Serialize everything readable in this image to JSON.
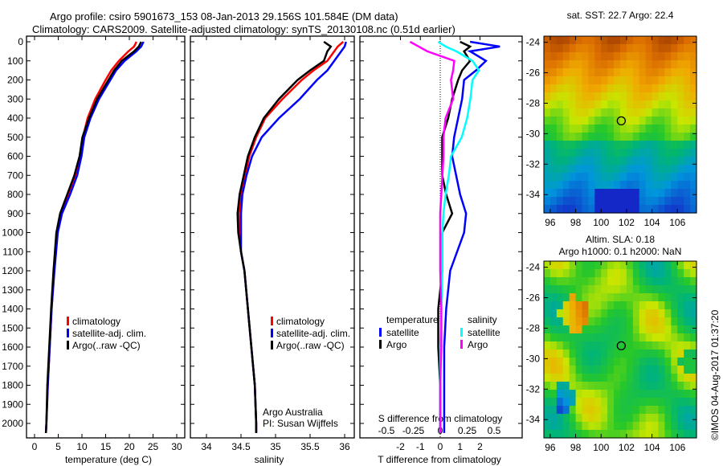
{
  "title_line1": "Argo profile: csiro 5901673_153 08-Jan-2013 29.156S 101.584E (DM data)",
  "title_line2": "Climatology: CARS2009. Satellite-adjusted climatology: synTS_20130108.nc (0.51d earlier)",
  "colors": {
    "climatology": "#ff0000",
    "satellite": "#0000ff",
    "argo": "#000000",
    "sal_satellite": "#00ffff",
    "sal_argo": "#ff00ff"
  },
  "chart_data": [
    {
      "type": "line",
      "name": "temperature",
      "xlabel": "temperature (deg C)",
      "ylabel": "",
      "xlim": [
        -2,
        32
      ],
      "ylim": [
        2050,
        0
      ],
      "xticks": [
        "0",
        "5",
        "10",
        "15",
        "20",
        "25",
        "30"
      ],
      "yticks": [
        "0",
        "100",
        "200",
        "300",
        "400",
        "500",
        "600",
        "700",
        "800",
        "900",
        "1000",
        "1100",
        "1200",
        "1300",
        "1400",
        "1500",
        "1600",
        "1700",
        "1800",
        "1900",
        "2000"
      ],
      "depth": [
        0,
        25,
        50,
        100,
        150,
        200,
        300,
        400,
        500,
        600,
        700,
        800,
        900,
        1000,
        1200,
        1400,
        1600,
        1800,
        2000,
        2050
      ],
      "series": [
        {
          "name": "climatology",
          "values": [
            21.5,
            21,
            19.8,
            17.8,
            16.2,
            15,
            12.8,
            11.2,
            10.2,
            9.6,
            8.7,
            7.2,
            5.6,
            4.8,
            4.1,
            3.6,
            3.2,
            2.8,
            2.5,
            2.4
          ]
        },
        {
          "name": "satellite-adj. clim.",
          "values": [
            23,
            22.5,
            21.5,
            19,
            17.2,
            16,
            13.6,
            11.8,
            10.5,
            9.9,
            9,
            7.5,
            5.8,
            4.9,
            4.2,
            3.6,
            3.2,
            2.8,
            2.5,
            2.4
          ]
        },
        {
          "name": "Argo(..raw -QC)",
          "values": [
            22.5,
            22,
            21,
            18.4,
            16.8,
            15.6,
            13.2,
            11.5,
            10.1,
            9.5,
            8.4,
            6.9,
            5.4,
            4.6,
            4,
            3.5,
            3.1,
            2.7,
            2.5,
            2.4
          ]
        }
      ],
      "legend": [
        "climatology",
        "satellite-adj. clim.",
        "Argo(..raw -QC)"
      ],
      "legend_position": "lower-center"
    },
    {
      "type": "line",
      "name": "salinity",
      "xlabel": "salinity",
      "xlim": [
        33.8,
        36.1
      ],
      "ylim": [
        2050,
        0
      ],
      "xticks": [
        "34",
        "34.5",
        "35",
        "35.5",
        "36"
      ],
      "depth": [
        0,
        25,
        50,
        100,
        150,
        200,
        300,
        400,
        500,
        600,
        700,
        800,
        900,
        1000,
        1100,
        1200,
        1400,
        1600,
        1800,
        2000,
        2050
      ],
      "series": [
        {
          "name": "climatology",
          "values": [
            35.98,
            35.9,
            35.85,
            35.75,
            35.55,
            35.38,
            35.1,
            34.85,
            34.72,
            34.62,
            34.56,
            34.5,
            34.47,
            34.48,
            34.5,
            34.55,
            34.6,
            34.65,
            34.7,
            34.72,
            34.72
          ]
        },
        {
          "name": "satellite-adj. clim.",
          "values": [
            36.02,
            36,
            35.95,
            35.85,
            35.75,
            35.6,
            35.35,
            35.05,
            34.8,
            34.66,
            34.58,
            34.52,
            34.5,
            34.5,
            34.5,
            34.55,
            34.6,
            34.65,
            34.7,
            34.72,
            34.72
          ]
        },
        {
          "name": "Argo(..raw -QC)",
          "values": [
            35.7,
            35.8,
            35.75,
            35.7,
            35.5,
            35.32,
            35.05,
            34.83,
            34.7,
            34.6,
            34.54,
            34.48,
            34.45,
            34.46,
            34.5,
            34.55,
            34.6,
            34.65,
            34.7,
            34.72,
            34.72
          ]
        }
      ],
      "legend": [
        "climatology",
        "satellite-adj. clim.",
        "Argo(..raw -QC)"
      ],
      "annotations": [
        "Argo Australia",
        "PI: Susan Wijffels"
      ]
    },
    {
      "type": "line",
      "name": "difference",
      "xlabel": "T difference from climatology",
      "x2label": "S difference from climatology",
      "xlim": [
        -2.6,
        3.1
      ],
      "x2lim": [
        -0.51,
        0.6
      ],
      "ylim": [
        2050,
        0
      ],
      "xticks": [
        "-2",
        "-1",
        "0",
        "1",
        "2"
      ],
      "x2ticks": [
        "-0.5",
        "-0.25",
        "0",
        "0.25",
        "0.5"
      ],
      "depth": [
        0,
        25,
        50,
        100,
        150,
        200,
        300,
        400,
        500,
        600,
        700,
        800,
        900,
        1000,
        1200,
        1400,
        1600,
        1800,
        2000,
        2050
      ],
      "series": [
        {
          "name": "temperature satellite",
          "axis": "T",
          "values": [
            1.5,
            3.0,
            1.5,
            2.3,
            1.8,
            1.2,
            1.1,
            0.9,
            0.7,
            0.6,
            0.8,
            1.0,
            1.3,
            1.2,
            0.5,
            0.3,
            0.2,
            0.2,
            0.2,
            0.2
          ]
        },
        {
          "name": "temperature Argo",
          "axis": "T",
          "values": [
            1.0,
            1.5,
            1.2,
            1.5,
            1.1,
            0.9,
            0.6,
            0.4,
            0.1,
            0.1,
            0.1,
            0.3,
            0.6,
            0.1,
            0.1,
            -0.1,
            -0.1,
            0,
            0,
            0
          ]
        },
        {
          "name": "salinity satellite",
          "axis": "S",
          "values": [
            -0.02,
            0.05,
            0.15,
            0.3,
            0.36,
            0.3,
            0.28,
            0.25,
            0.2,
            0.1,
            0.08,
            0.05,
            0.03,
            0.02,
            0.02,
            0.01,
            0,
            0,
            0,
            0
          ]
        },
        {
          "name": "salinity Argo",
          "axis": "S",
          "values": [
            -0.28,
            -0.2,
            -0.12,
            0.13,
            0.12,
            0.1,
            0.12,
            0.05,
            0.03,
            0.03,
            0.02,
            0.01,
            0,
            0,
            0,
            0.01,
            0.01,
            0,
            0,
            0
          ]
        }
      ],
      "legend_groups": [
        "temperature",
        "salinity"
      ],
      "legend": [
        "satellite",
        "Argo",
        "satellite",
        "Argo"
      ]
    },
    {
      "type": "heatmap",
      "name": "sst_map",
      "title": "sat. SST: 22.7 Argo: 22.4",
      "xticks": [
        "96",
        "98",
        "100",
        "102",
        "104",
        "106"
      ],
      "yticks": [
        "-24",
        "-26",
        "-28",
        "-30",
        "-32",
        "-34"
      ],
      "xlim": [
        95.5,
        107.5
      ],
      "ylim": [
        -35.2,
        -23.6
      ],
      "marker": [
        101.584,
        -29.156
      ]
    },
    {
      "type": "heatmap",
      "name": "sla_map",
      "title_line1": "Altim. SLA: 0.18",
      "title_line2": "Argo h1000: 0.1 h2000: NaN",
      "xticks": [
        "96",
        "98",
        "100",
        "102",
        "104",
        "106"
      ],
      "yticks": [
        "-24",
        "-26",
        "-28",
        "-30",
        "-32",
        "-34"
      ],
      "xlim": [
        95.5,
        107.5
      ],
      "ylim": [
        -35.2,
        -23.6
      ],
      "marker": [
        101.584,
        -29.156
      ]
    }
  ],
  "watermark": "©IMOS 04-Aug-2017 01:37:20"
}
